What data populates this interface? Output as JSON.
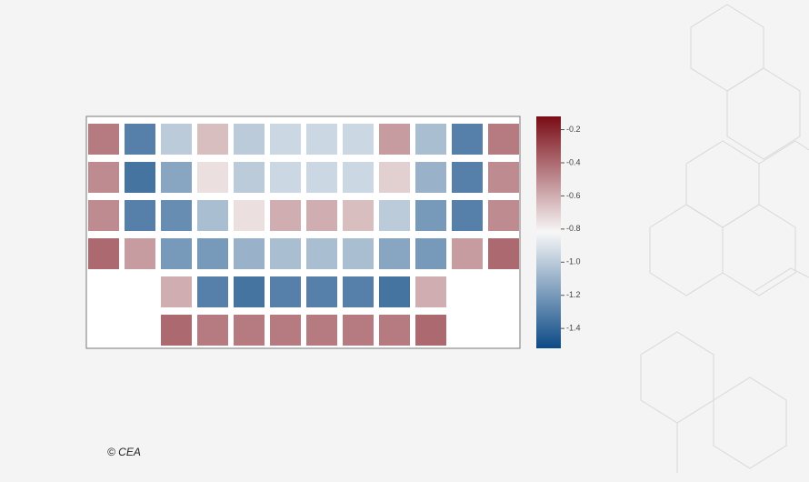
{
  "chart_data": {
    "type": "heatmap",
    "values": [
      [
        -0.45,
        -1.3,
        -1.0,
        -0.65,
        -1.0,
        -0.95,
        -0.95,
        -0.95,
        -0.55,
        -1.05,
        -1.3,
        -0.45
      ],
      [
        -0.5,
        -1.35,
        -1.15,
        -0.75,
        -1.0,
        -0.95,
        -0.95,
        -0.95,
        -0.7,
        -1.1,
        -1.3,
        -0.5
      ],
      [
        -0.5,
        -1.3,
        -1.25,
        -1.05,
        -0.75,
        -0.6,
        -0.6,
        -0.65,
        -1.0,
        -1.2,
        -1.3,
        -0.5
      ],
      [
        -0.4,
        -0.55,
        -1.2,
        -1.2,
        -1.1,
        -1.05,
        -1.05,
        -1.05,
        -1.15,
        -1.2,
        -0.55,
        -0.4
      ],
      [
        null,
        null,
        -0.6,
        -1.3,
        -1.35,
        -1.3,
        -1.3,
        -1.3,
        -1.35,
        -0.6,
        null,
        null
      ],
      [
        null,
        null,
        -0.4,
        -0.45,
        -0.45,
        -0.45,
        -0.45,
        -0.45,
        -0.45,
        -0.4,
        null,
        null
      ]
    ],
    "zlim": [
      -1.52,
      -0.12
    ],
    "zticks": [
      -0.2,
      -0.4,
      -0.6,
      -0.8,
      {
        "value": -1,
        "label": "-1.0"
      },
      -1.2,
      -1.4
    ],
    "colormap": [
      "#0c4a86",
      "#f7f7f7",
      "#7a0c16"
    ],
    "credit": "© CEA"
  }
}
